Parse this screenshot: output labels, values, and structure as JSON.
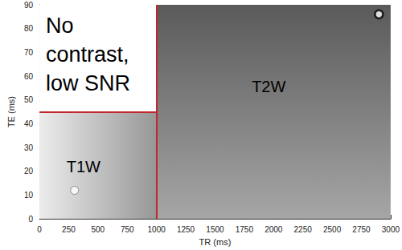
{
  "chart_data": {
    "type": "scatter",
    "x_label": "TR (ms)",
    "y_label": "TE (ms)",
    "xlim": [
      0,
      3000
    ],
    "xticks": [
      0,
      250,
      500,
      750,
      1000,
      1250,
      1500,
      1750,
      2000,
      2250,
      2500,
      2750,
      3000
    ],
    "ylim": [
      0,
      90
    ],
    "yticks": [
      0,
      10,
      20,
      30,
      40,
      50,
      60,
      70,
      80,
      90
    ],
    "grid": false,
    "regions": [
      {
        "label": [
          "T1W"
        ],
        "x": [
          0,
          1000
        ],
        "y": [
          0,
          45
        ],
        "color": "#ececec"
      },
      {
        "label": [
          "T2W"
        ],
        "x": [
          1000,
          3000
        ],
        "y": [
          0,
          90
        ],
        "color": "#a6a6a6"
      },
      {
        "label": [
          "No",
          "contrast,",
          "low SNR"
        ],
        "x": [
          0,
          1000
        ],
        "y": [
          45,
          90
        ],
        "color": "#ffffff"
      }
    ],
    "boundaries": [
      {
        "x": [
          1000,
          1000
        ],
        "y": [
          0,
          90
        ]
      },
      {
        "x": [
          0,
          1000
        ],
        "y": [
          45,
          45
        ]
      }
    ],
    "boundary_color": "#c1272d",
    "x": [
      300,
      2900
    ],
    "values": [
      12,
      86
    ],
    "colors": [
      "#ffffff",
      "#ffffff"
    ],
    "marker": "circle"
  }
}
